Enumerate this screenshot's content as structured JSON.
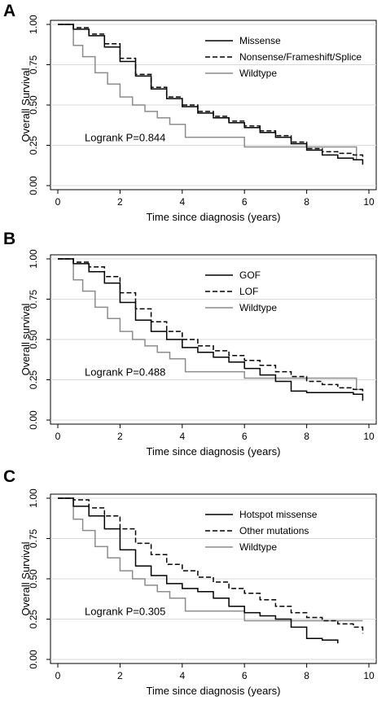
{
  "chart_data": [
    {
      "type": "line",
      "panel_label": "A",
      "ylabel": "Overall Survival",
      "xlabel": "Time since diagnosis (years)",
      "xlim": [
        0,
        10
      ],
      "ylim": [
        0,
        1
      ],
      "xticks": [
        "0",
        "2",
        "4",
        "6",
        "8",
        "10"
      ],
      "yticks": [
        "0.00",
        "0.25",
        "0.50",
        "0.75",
        "1.00"
      ],
      "grid": "horizontal",
      "legend_position": "top-right",
      "annotation": "Logrank  P=0.844",
      "series": [
        {
          "name": "Missense",
          "color": "#000000",
          "style": "solid",
          "x": [
            0,
            0.5,
            1,
            1.5,
            2,
            2.5,
            3,
            3.5,
            4,
            4.5,
            5,
            5.5,
            6,
            6.5,
            7,
            7.5,
            8,
            8.5,
            9,
            9.5,
            9.8
          ],
          "y": [
            1,
            0.97,
            0.93,
            0.86,
            0.77,
            0.68,
            0.6,
            0.54,
            0.49,
            0.45,
            0.42,
            0.39,
            0.36,
            0.33,
            0.3,
            0.26,
            0.22,
            0.19,
            0.17,
            0.16,
            0.13
          ]
        },
        {
          "name": "Nonsense/Frameshift/Splice",
          "color": "#000000",
          "style": "dashed",
          "x": [
            0,
            0.5,
            1,
            1.5,
            2,
            2.5,
            3,
            3.5,
            4,
            4.5,
            5,
            5.5,
            6,
            6.5,
            7,
            7.5,
            8,
            8.5,
            9,
            9.5,
            9.8
          ],
          "y": [
            1,
            0.98,
            0.94,
            0.88,
            0.79,
            0.69,
            0.61,
            0.55,
            0.5,
            0.46,
            0.43,
            0.4,
            0.37,
            0.34,
            0.31,
            0.27,
            0.23,
            0.21,
            0.2,
            0.19,
            0.17
          ]
        },
        {
          "name": "Wildtype",
          "color": "#8c8c8c",
          "style": "solid",
          "x": [
            0,
            0.5,
            0.8,
            1.2,
            1.6,
            2,
            2.4,
            2.8,
            3.2,
            3.6,
            4.1,
            4.6,
            5,
            6,
            7,
            7.6,
            8.3,
            9,
            9.6,
            9.8
          ],
          "y": [
            1,
            0.87,
            0.8,
            0.7,
            0.63,
            0.55,
            0.5,
            0.46,
            0.42,
            0.38,
            0.3,
            0.3,
            0.3,
            0.24,
            0.24,
            0.24,
            0.24,
            0.24,
            0.16,
            0.16
          ]
        }
      ]
    },
    {
      "type": "line",
      "panel_label": "B",
      "ylabel": "Overall survival",
      "xlabel": "Time since diagnosis (years)",
      "xlim": [
        0,
        10
      ],
      "ylim": [
        0,
        1
      ],
      "xticks": [
        "0",
        "2",
        "4",
        "6",
        "8",
        "10"
      ],
      "yticks": [
        "0.00",
        "0.25",
        "0.50",
        "0.75",
        "1.00"
      ],
      "grid": "horizontal",
      "legend_position": "right",
      "annotation": "Logrank  P=0.488",
      "series": [
        {
          "name": "GOF",
          "color": "#000000",
          "style": "solid",
          "x": [
            0,
            0.5,
            1,
            1.5,
            2,
            2.5,
            3,
            3.5,
            4,
            4.5,
            5,
            5.5,
            6,
            6.5,
            7,
            7.5,
            8,
            8.5,
            9,
            9.5,
            9.8
          ],
          "y": [
            1,
            0.97,
            0.92,
            0.85,
            0.73,
            0.62,
            0.55,
            0.5,
            0.45,
            0.42,
            0.39,
            0.36,
            0.32,
            0.28,
            0.24,
            0.18,
            0.17,
            0.17,
            0.17,
            0.16,
            0.12
          ]
        },
        {
          "name": "LOF",
          "color": "#000000",
          "style": "dashed",
          "x": [
            0,
            0.5,
            1,
            1.5,
            2,
            2.5,
            3,
            3.5,
            4,
            4.5,
            5,
            5.5,
            6,
            6.5,
            7,
            7.5,
            8,
            8.5,
            9,
            9.5,
            9.8
          ],
          "y": [
            1,
            0.98,
            0.95,
            0.89,
            0.79,
            0.69,
            0.61,
            0.55,
            0.5,
            0.46,
            0.43,
            0.4,
            0.37,
            0.34,
            0.3,
            0.27,
            0.24,
            0.22,
            0.2,
            0.19,
            0.16
          ]
        },
        {
          "name": "Wildtype",
          "color": "#8c8c8c",
          "style": "solid",
          "x": [
            0,
            0.5,
            0.8,
            1.2,
            1.6,
            2,
            2.4,
            2.8,
            3.2,
            3.6,
            4.1,
            4.6,
            5,
            6,
            7,
            7.6,
            8.3,
            9,
            9.6,
            9.8
          ],
          "y": [
            1,
            0.87,
            0.8,
            0.7,
            0.63,
            0.55,
            0.5,
            0.46,
            0.42,
            0.38,
            0.3,
            0.3,
            0.3,
            0.26,
            0.26,
            0.26,
            0.26,
            0.26,
            0.19,
            0.19
          ]
        }
      ]
    },
    {
      "type": "line",
      "panel_label": "C",
      "ylabel": "Overall Survival",
      "xlabel": "Time since diagnosis (years)",
      "xlim": [
        0,
        10
      ],
      "ylim": [
        0,
        1
      ],
      "xticks": [
        "0",
        "2",
        "4",
        "6",
        "8",
        "10"
      ],
      "yticks": [
        "0.00",
        "0.25",
        "0.50",
        "0.75",
        "1.00"
      ],
      "grid": "horizontal",
      "legend_position": "right",
      "annotation": "Logrank  P=0.305",
      "series": [
        {
          "name": "Hotspot missense",
          "color": "#000000",
          "style": "solid",
          "x": [
            0,
            0.5,
            1,
            1.5,
            2,
            2.5,
            3,
            3.5,
            4,
            4.5,
            5,
            5.5,
            6,
            6.5,
            7,
            7.5,
            8,
            8.5,
            9
          ],
          "y": [
            1,
            0.95,
            0.89,
            0.81,
            0.68,
            0.58,
            0.52,
            0.47,
            0.44,
            0.42,
            0.38,
            0.33,
            0.29,
            0.27,
            0.25,
            0.2,
            0.13,
            0.12,
            0.1
          ]
        },
        {
          "name": "Other mutations",
          "color": "#000000",
          "style": "dashed",
          "x": [
            0,
            0.5,
            1,
            1.5,
            2,
            2.5,
            3,
            3.5,
            4,
            4.5,
            5,
            5.5,
            6,
            6.5,
            7,
            7.5,
            8,
            8.5,
            9,
            9.5,
            9.8
          ],
          "y": [
            1,
            0.99,
            0.94,
            0.89,
            0.81,
            0.72,
            0.65,
            0.59,
            0.55,
            0.51,
            0.48,
            0.44,
            0.41,
            0.37,
            0.33,
            0.29,
            0.26,
            0.24,
            0.22,
            0.2,
            0.16
          ]
        },
        {
          "name": "Wildtype",
          "color": "#8c8c8c",
          "style": "solid",
          "x": [
            0,
            0.5,
            0.8,
            1.2,
            1.6,
            2,
            2.4,
            2.8,
            3.2,
            3.6,
            4.1,
            4.6,
            5,
            6,
            7,
            7.6,
            8.3,
            9,
            9.4,
            9.8
          ],
          "y": [
            1,
            0.87,
            0.8,
            0.7,
            0.63,
            0.55,
            0.5,
            0.46,
            0.42,
            0.38,
            0.3,
            0.3,
            0.3,
            0.24,
            0.24,
            0.24,
            0.24,
            0.24,
            0.24,
            0.24
          ]
        }
      ]
    }
  ]
}
